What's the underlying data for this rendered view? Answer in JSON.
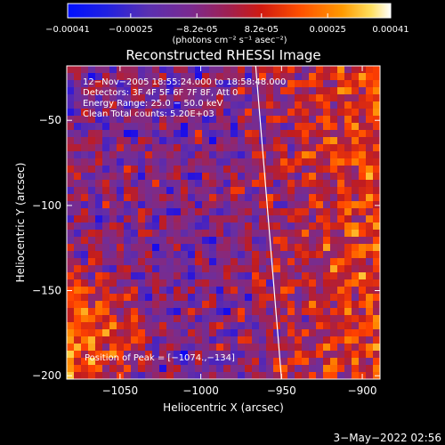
{
  "chart_data": {
    "type": "heatmap",
    "title": "Reconstructed RHESSI Image",
    "xlabel": "Heliocentric X (arcsec)",
    "ylabel": "Heliocentric Y (arcsec)",
    "xlim": [
      -1083,
      -889
    ],
    "ylim": [
      -202,
      -18
    ],
    "x_ticks": [
      {
        "value": -1050,
        "label": "−1050"
      },
      {
        "value": -1000,
        "label": "−1000"
      },
      {
        "value": -950,
        "label": "−950"
      },
      {
        "value": -900,
        "label": "−900"
      }
    ],
    "y_ticks": [
      {
        "value": -50,
        "label": "−50"
      },
      {
        "value": -100,
        "label": "−100"
      },
      {
        "value": -150,
        "label": "−150"
      },
      {
        "value": -200,
        "label": "−200"
      }
    ],
    "colorbar": {
      "range": [
        -0.00041,
        0.00041
      ],
      "tick_labels": [
        "−0.00041",
        "−0.00025",
        "−8.2e-05",
        "8.2e-05",
        "0.00025",
        "0.00041"
      ],
      "tick_values": [
        -0.00041,
        -0.00025,
        -8.2e-05,
        8.2e-05,
        0.00025,
        0.00041
      ],
      "unit_label": "(photons cm⁻² s⁻¹ asec⁻²)",
      "colormap": [
        "#0000ff",
        "#4020c8",
        "#6a2fa0",
        "#8a2878",
        "#c01c20",
        "#ff4000",
        "#ff8800",
        "#ffd040",
        "#ffffff"
      ]
    },
    "annotations": [
      "12−Nov−2005 18:55:24.000 to 18:58:48.000",
      "Detectors: 3F 4F 5F 6F 7F 8F, Att 0",
      "Energy Range: 25.0 − 50.0 keV",
      "Clean    Total counts: 5.20E+03"
    ],
    "peak_label": "Position of Peak = [−1074.,−134]",
    "limb_line": [
      [
        -966,
        -18
      ],
      [
        -950,
        -202
      ]
    ],
    "grid": false
  },
  "footer": {
    "timestamp": "3−May−2022 02:56"
  }
}
